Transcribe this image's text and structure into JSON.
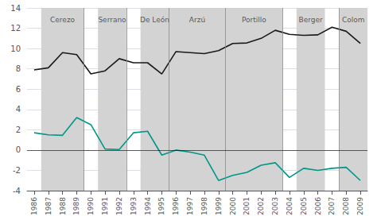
{
  "chart_data": {
    "type": "line",
    "x": [
      1986,
      1987,
      1988,
      1989,
      1990,
      1991,
      1992,
      1993,
      1994,
      1995,
      1996,
      1997,
      1998,
      1999,
      2000,
      2001,
      2002,
      2003,
      2004,
      2005,
      2006,
      2007,
      2008,
      2009
    ],
    "series": [
      {
        "color": "#1a1a1a",
        "values": [
          7.9,
          8.1,
          9.6,
          9.4,
          7.5,
          7.8,
          9.0,
          8.6,
          8.6,
          7.5,
          9.7,
          9.6,
          9.5,
          9.8,
          10.5,
          10.55,
          11.0,
          11.8,
          11.4,
          11.3,
          11.35,
          12.1,
          11.7,
          10.5
        ]
      },
      {
        "color": "#009688",
        "values": [
          1.7,
          1.5,
          1.45,
          3.2,
          2.5,
          0.1,
          0.05,
          1.7,
          1.85,
          -0.5,
          0.0,
          -0.2,
          -0.5,
          -3.0,
          -2.5,
          -2.2,
          -1.5,
          -1.25,
          -2.7,
          -1.8,
          -2.0,
          -1.8,
          -1.7,
          -3.0
        ]
      }
    ],
    "shade_regions": [
      [
        1986.5,
        1989.5
      ],
      [
        1990.5,
        1992.5
      ],
      [
        1993.5,
        1995.5
      ],
      [
        1995.5,
        1999.5
      ],
      [
        1999.5,
        2003.5
      ],
      [
        2004.5,
        2006.5
      ],
      [
        2007.5,
        2009.5
      ]
    ],
    "shade_color": "#d3d3d3",
    "vlines": [
      1989.5,
      1992.5,
      1995.5,
      1999.5,
      2003.5,
      2007.5
    ],
    "hlines": [
      0
    ],
    "annotations": [
      {
        "text": "Cerezo",
        "x": 1988.0,
        "y": 13.2
      },
      {
        "text": "Serrano",
        "x": 1991.5,
        "y": 13.2
      },
      {
        "text": "De León",
        "x": 1994.5,
        "y": 13.2
      },
      {
        "text": "Arzú",
        "x": 1997.5,
        "y": 13.2
      },
      {
        "text": "Portillo",
        "x": 2001.5,
        "y": 13.2
      },
      {
        "text": "Berger",
        "x": 2005.5,
        "y": 13.2
      },
      {
        "text": "Colom",
        "x": 2008.5,
        "y": 13.2
      }
    ],
    "xlim": [
      1985.5,
      2009.5
    ],
    "xticks": [
      1986,
      1987,
      1988,
      1989,
      1990,
      1991,
      1992,
      1993,
      1994,
      1995,
      1996,
      1997,
      1998,
      1999,
      2000,
      2001,
      2002,
      2003,
      2004,
      2005,
      2006,
      2007,
      2008,
      2009
    ],
    "ylim": [
      -4,
      14
    ],
    "yticks": [
      -4,
      -2,
      0,
      2,
      4,
      6,
      8,
      10,
      12,
      14
    ],
    "grid": true
  }
}
